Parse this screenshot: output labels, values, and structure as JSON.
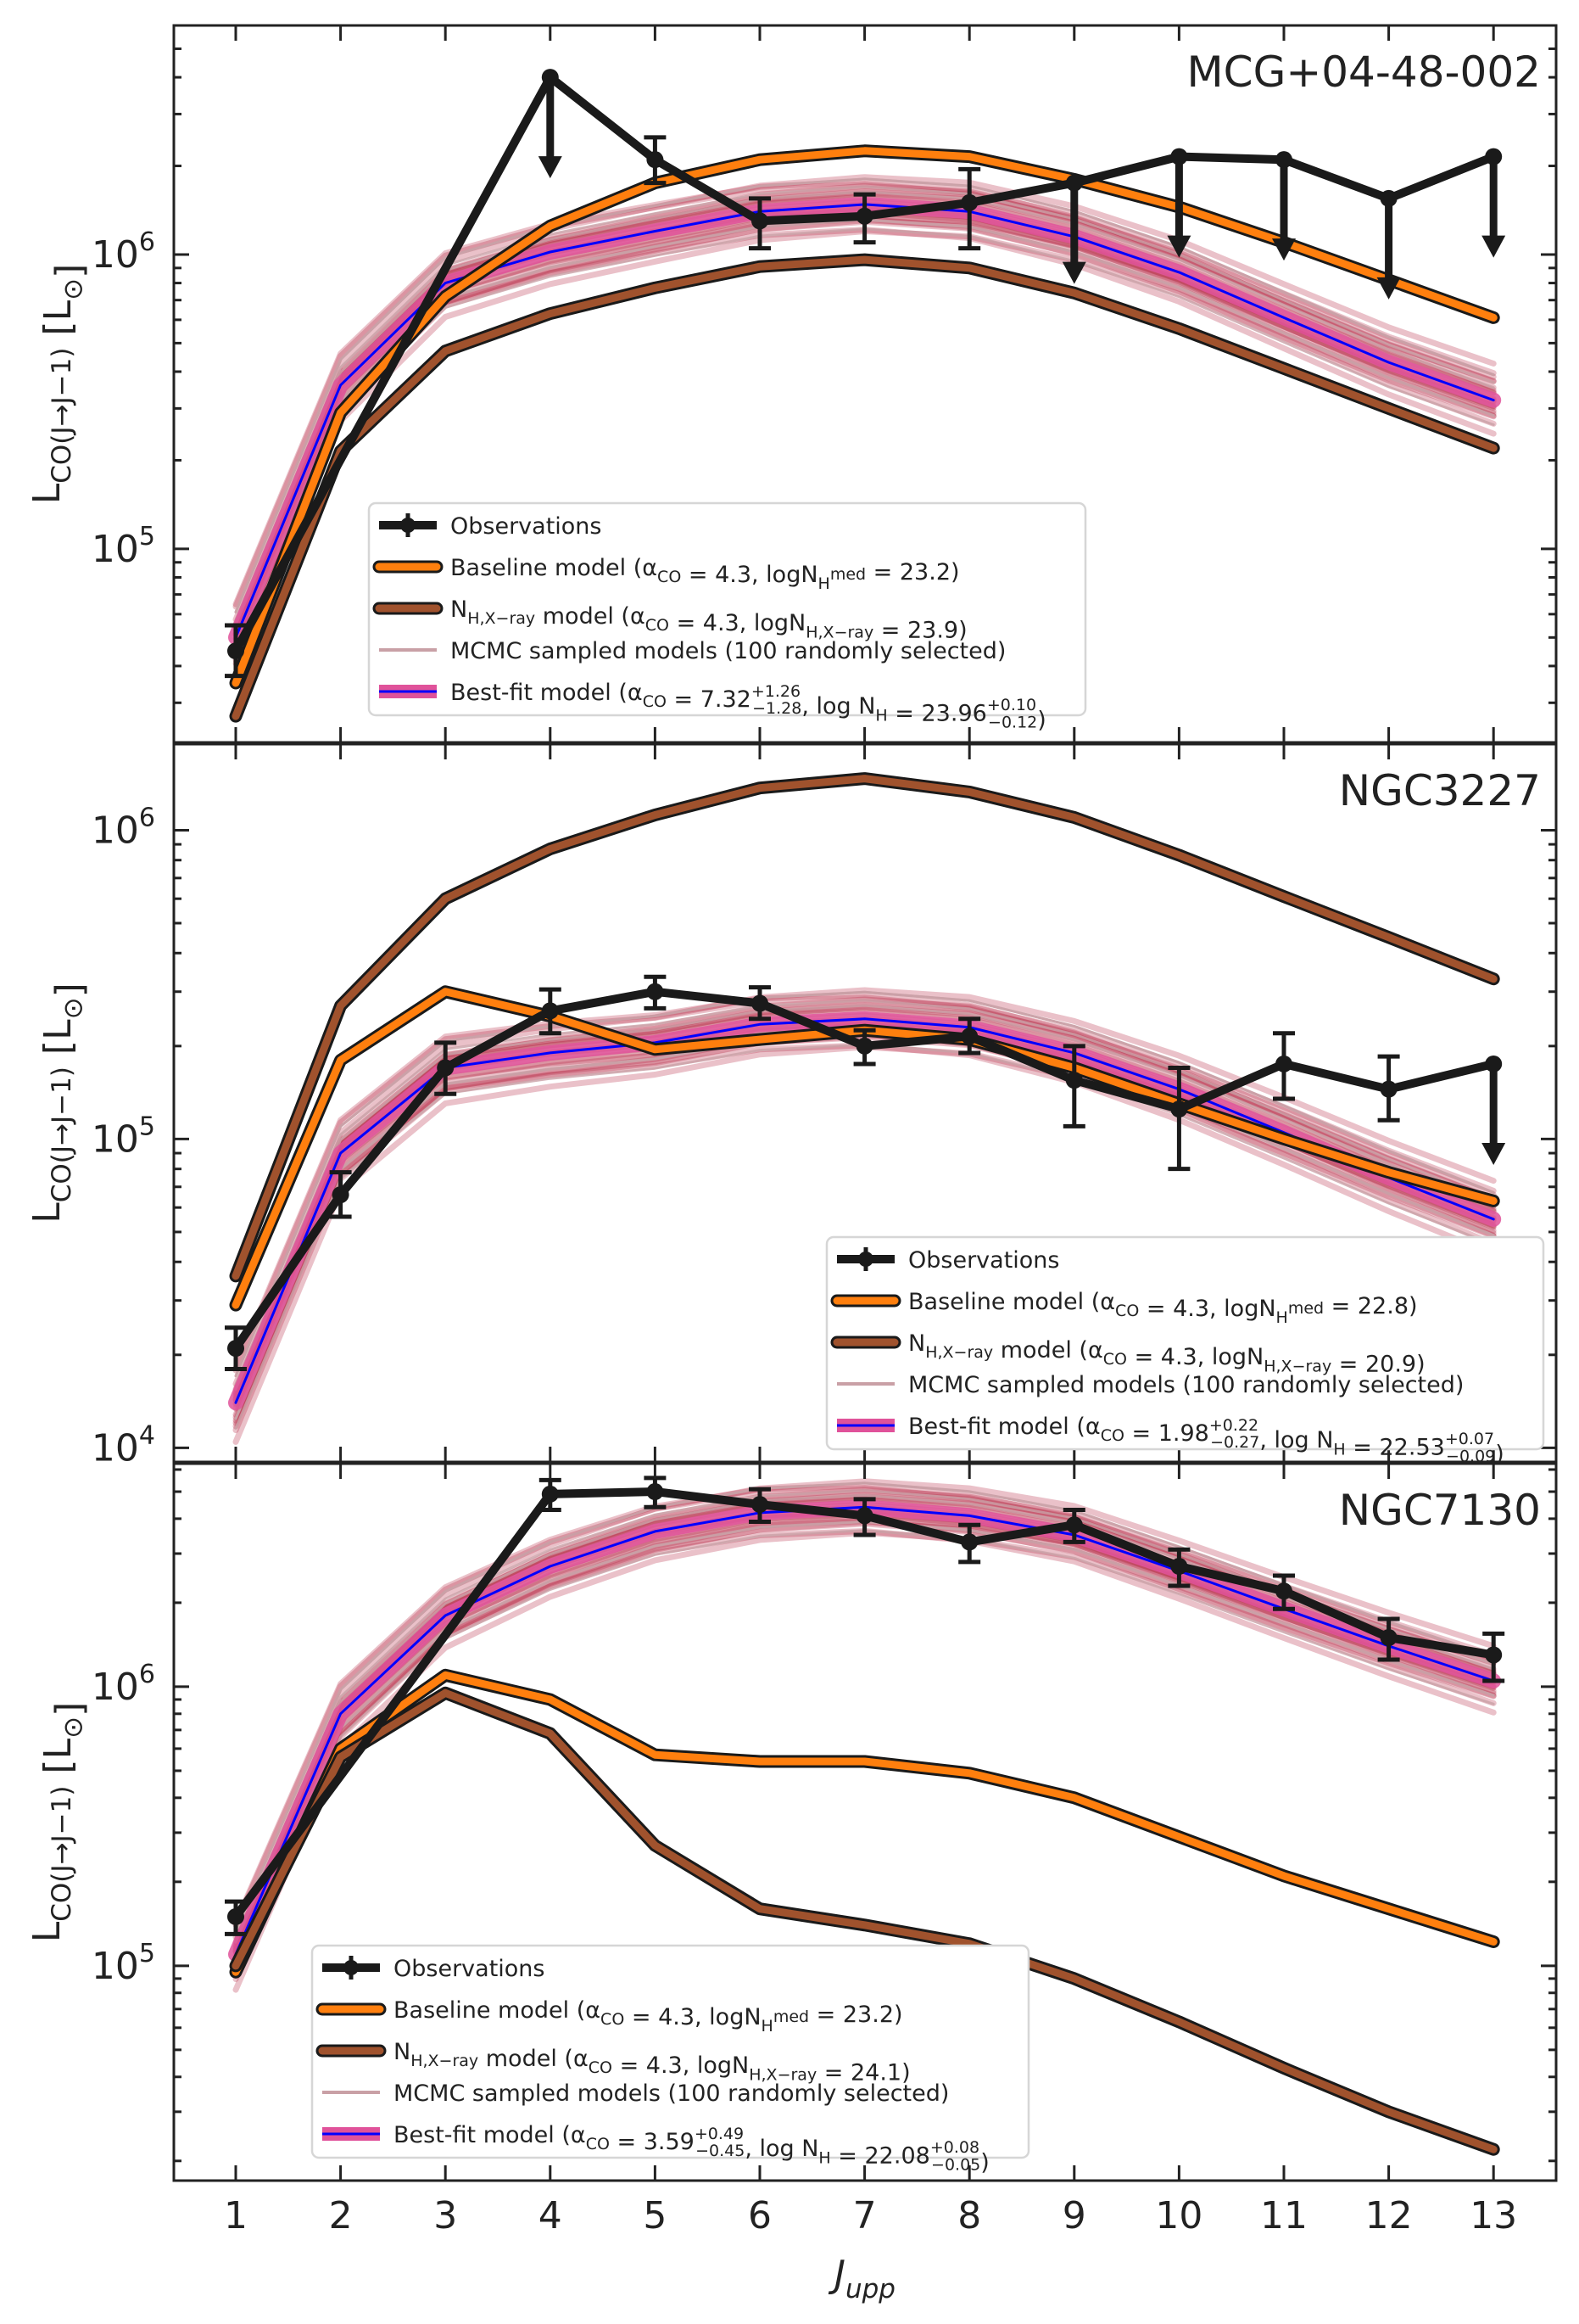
{
  "chart_data": [
    {
      "type": "line",
      "title": "MCG+04-48-002",
      "x": [
        1,
        2,
        3,
        4,
        5,
        6,
        7,
        8,
        9,
        10,
        11,
        12,
        13
      ],
      "ylabel": "L_{CO(J→J−1)} [L_⊙]",
      "xlabel": "",
      "yscale": "log",
      "ylim": [
        22000,
        6000000
      ],
      "y_tick_values": [
        100000,
        1000000
      ],
      "y_tick_labels": [
        {
          "base": "10",
          "exp": "5"
        },
        {
          "base": "10",
          "exp": "6"
        }
      ],
      "legend_position": "lower-center",
      "colors": {
        "observations": "#1a1a1a",
        "baseline": "#ff7f0e",
        "nhx": "#a0522d",
        "mcmc": "#c9a0a6",
        "bestfit": "#0000ff",
        "bestfit_band": "#e0529a",
        "mcmc_band": "#b5213e"
      },
      "observations": {
        "x": [
          1,
          4,
          5,
          6,
          7,
          8,
          9,
          10,
          11,
          12,
          13
        ],
        "y": [
          45000,
          4000000,
          2100000,
          1300000,
          1350000,
          1500000,
          1750000,
          2150000,
          2100000,
          1550000,
          2150000
        ],
        "err_low": [
          8000,
          0,
          350000,
          250000,
          250000,
          450000,
          0,
          0,
          0,
          0,
          0
        ],
        "err_high": [
          10000,
          0,
          400000,
          250000,
          250000,
          450000,
          0,
          0,
          0,
          0,
          0
        ],
        "upper_limit": [
          false,
          true,
          false,
          false,
          false,
          false,
          true,
          true,
          true,
          true,
          true
        ]
      },
      "series": [
        {
          "name": "baseline",
          "x": [
            1,
            2,
            3,
            4,
            5,
            6,
            7,
            8,
            9,
            10,
            11,
            12,
            13
          ],
          "values": [
            35000,
            290000,
            720000,
            1250000,
            1750000,
            2100000,
            2250000,
            2150000,
            1800000,
            1450000,
            1100000,
            820000,
            610000
          ]
        },
        {
          "name": "nhx",
          "x": [
            1,
            2,
            3,
            4,
            5,
            6,
            7,
            8,
            9,
            10,
            11,
            12,
            13
          ],
          "values": [
            27000,
            215000,
            470000,
            630000,
            770000,
            910000,
            960000,
            900000,
            740000,
            560000,
            410000,
            300000,
            220000
          ]
        },
        {
          "name": "bestfit",
          "x": [
            1,
            2,
            3,
            4,
            5,
            6,
            7,
            8,
            9,
            10,
            11,
            12,
            13
          ],
          "values": [
            50000,
            360000,
            800000,
            1020000,
            1200000,
            1400000,
            1480000,
            1400000,
            1150000,
            870000,
            610000,
            430000,
            320000
          ]
        }
      ],
      "legend": {
        "observations": "Observations",
        "baseline": "Baseline model (α_{CO} = 4.3, logN_H^{med} = 23.2)",
        "nhx": "N_{H,X−ray} model (α_{CO} = 4.3, logN_{H,X−ray} = 23.9)",
        "mcmc": "MCMC sampled models (100 randomly selected)",
        "bestfit": "Best-fit model (α_{CO} = 7.32^{+1.26}_{−1.28}, log N_H = 23.96^{+0.10}_{−0.12})"
      }
    },
    {
      "type": "line",
      "title": "NGC3227",
      "x": [
        1,
        2,
        3,
        4,
        5,
        6,
        7,
        8,
        9,
        10,
        11,
        12,
        13
      ],
      "ylabel": "L_{CO(J→J−1)} [L_⊙]",
      "xlabel": "",
      "yscale": "log",
      "ylim": [
        9000,
        1900000
      ],
      "y_tick_values": [
        10000,
        100000,
        1000000
      ],
      "y_tick_labels": [
        {
          "base": "10",
          "exp": "4"
        },
        {
          "base": "10",
          "exp": "5"
        },
        {
          "base": "10",
          "exp": "6"
        }
      ],
      "legend_position": "lower-right",
      "colors": {
        "observations": "#1a1a1a",
        "baseline": "#ff7f0e",
        "nhx": "#a0522d",
        "mcmc": "#c9a0a6",
        "bestfit": "#0000ff",
        "bestfit_band": "#e0529a",
        "mcmc_band": "#b5213e"
      },
      "observations": {
        "x": [
          1,
          2,
          3,
          4,
          5,
          6,
          7,
          8,
          9,
          10,
          11,
          12,
          13
        ],
        "y": [
          21000,
          66000,
          170000,
          260000,
          300000,
          275000,
          200000,
          215000,
          155000,
          125000,
          175000,
          145000,
          175000
        ],
        "err_low": [
          3000,
          10000,
          30000,
          40000,
          35000,
          30000,
          25000,
          25000,
          45000,
          45000,
          40000,
          30000,
          0
        ],
        "err_high": [
          3500,
          12000,
          35000,
          45000,
          35000,
          35000,
          25000,
          30000,
          45000,
          45000,
          45000,
          40000,
          0
        ],
        "upper_limit": [
          false,
          false,
          false,
          false,
          false,
          false,
          false,
          false,
          false,
          false,
          false,
          false,
          true
        ]
      },
      "series": [
        {
          "name": "baseline",
          "x": [
            1,
            2,
            3,
            4,
            5,
            6,
            7,
            8,
            9,
            10,
            11,
            12,
            13
          ],
          "values": [
            29000,
            180000,
            300000,
            250000,
            195000,
            210000,
            225000,
            210000,
            170000,
            130000,
            100000,
            78000,
            63000
          ]
        },
        {
          "name": "nhx",
          "x": [
            1,
            2,
            3,
            4,
            5,
            6,
            7,
            8,
            9,
            10,
            11,
            12,
            13
          ],
          "values": [
            36000,
            270000,
            600000,
            870000,
            1120000,
            1370000,
            1470000,
            1330000,
            1100000,
            830000,
            610000,
            450000,
            330000
          ]
        },
        {
          "name": "bestfit",
          "x": [
            1,
            2,
            3,
            4,
            5,
            6,
            7,
            8,
            9,
            10,
            11,
            12,
            13
          ],
          "values": [
            14000,
            90000,
            170000,
            190000,
            205000,
            235000,
            245000,
            230000,
            190000,
            145000,
            105000,
            75000,
            55000
          ]
        }
      ],
      "legend": {
        "observations": "Observations",
        "baseline": "Baseline model (α_{CO} = 4.3, logN_H^{med} = 22.8)",
        "nhx": "N_{H,X−ray} model (α_{CO} = 4.3, logN_{H,X−ray} = 20.9)",
        "mcmc": "MCMC sampled models (100 randomly selected)",
        "bestfit": "Best-fit model (α_{CO} = 1.98^{+0.22}_{−0.27}, log N_H = 22.53^{+0.07}_{−0.09})"
      }
    },
    {
      "type": "line",
      "title": "NGC7130",
      "x": [
        1,
        2,
        3,
        4,
        5,
        6,
        7,
        8,
        9,
        10,
        11,
        12,
        13
      ],
      "ylabel": "L_{CO(J→J−1)} [L_⊙]",
      "xlabel": "J_{upp}",
      "yscale": "log",
      "ylim": [
        17000,
        6300000
      ],
      "y_tick_values": [
        100000,
        1000000
      ],
      "y_tick_labels": [
        {
          "base": "10",
          "exp": "5"
        },
        {
          "base": "10",
          "exp": "6"
        }
      ],
      "x_tick_labels": [
        "1",
        "2",
        "3",
        "4",
        "5",
        "6",
        "7",
        "8",
        "9",
        "10",
        "11",
        "12",
        "13"
      ],
      "legend_position": "lower-center",
      "colors": {
        "observations": "#1a1a1a",
        "baseline": "#ff7f0e",
        "nhx": "#a0522d",
        "mcmc": "#c9a0a6",
        "bestfit": "#0000ff",
        "bestfit_band": "#e0529a",
        "mcmc_band": "#b5213e"
      },
      "observations": {
        "x": [
          1,
          4,
          5,
          6,
          7,
          8,
          9,
          10,
          11,
          12,
          13
        ],
        "y": [
          150000,
          4900000,
          5000000,
          4500000,
          4100000,
          3300000,
          3800000,
          2700000,
          2200000,
          1500000,
          1300000
        ],
        "err_low": [
          20000,
          600000,
          600000,
          600000,
          600000,
          500000,
          500000,
          400000,
          300000,
          250000,
          250000
        ],
        "err_high": [
          20000,
          600000,
          600000,
          600000,
          600000,
          500000,
          500000,
          400000,
          300000,
          250000,
          250000
        ],
        "upper_limit": [
          false,
          false,
          false,
          false,
          false,
          false,
          false,
          false,
          false,
          false,
          false
        ]
      },
      "series": [
        {
          "name": "baseline",
          "x": [
            1,
            2,
            3,
            4,
            5,
            6,
            7,
            8,
            9,
            10,
            11,
            12,
            13
          ],
          "values": [
            95000,
            600000,
            1100000,
            900000,
            570000,
            540000,
            540000,
            490000,
            400000,
            290000,
            210000,
            160000,
            122000
          ]
        },
        {
          "name": "nhx",
          "x": [
            1,
            2,
            3,
            4,
            5,
            6,
            7,
            8,
            9,
            10,
            11,
            12,
            13
          ],
          "values": [
            100000,
            560000,
            950000,
            680000,
            270000,
            160000,
            140000,
            120000,
            90000,
            63000,
            43000,
            30000,
            22000
          ]
        },
        {
          "name": "bestfit",
          "x": [
            1,
            2,
            3,
            4,
            5,
            6,
            7,
            8,
            9,
            10,
            11,
            12,
            13
          ],
          "values": [
            110000,
            800000,
            1800000,
            2700000,
            3600000,
            4200000,
            4400000,
            4100000,
            3500000,
            2600000,
            1900000,
            1400000,
            1050000
          ]
        }
      ],
      "legend": {
        "observations": "Observations",
        "baseline": "Baseline model (α_{CO} = 4.3, logN_H^{med} = 23.2)",
        "nhx": "N_{H,X−ray} model (α_{CO} = 4.3, logN_{H,X−ray} = 24.1)",
        "mcmc": "MCMC sampled models (100 randomly selected)",
        "bestfit": "Best-fit model (α_{CO} = 3.59^{+0.49}_{−0.45}, log N_H = 22.08^{+0.08}_{−0.05})"
      }
    }
  ]
}
